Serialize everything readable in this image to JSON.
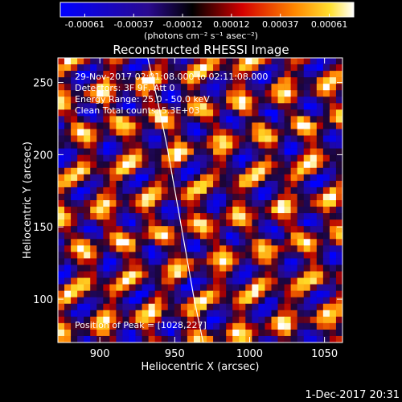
{
  "chart_data": {
    "type": "heatmap",
    "title": "Reconstructed RHESSI Image",
    "xlabel": "Heliocentric X (arcsec)",
    "ylabel": "Heliocentric Y (arcsec)",
    "xlim": [
      872,
      1062
    ],
    "ylim": [
      70,
      267
    ],
    "x_ticks": [
      900,
      950,
      1000,
      1050
    ],
    "y_ticks": [
      100,
      150,
      200,
      250
    ],
    "grid": false,
    "colorbar": {
      "range": [
        -0.00061,
        0.00061
      ],
      "tick_labels": [
        "-0.00061",
        "-0.00037",
        "-0.00012",
        "0.00012",
        "0.00037",
        "0.00061"
      ],
      "units_text": "(photons cm⁻² s⁻¹ asec⁻²)",
      "colors": [
        "#0000ff",
        "#000000",
        "#d70000",
        "#ff8800",
        "#ffffff"
      ]
    },
    "annotations": {
      "time_range": "29-Nov-2017 02:01:08.000 to 02:11:08.000",
      "detectors": "Detectors: 3F 9F, Att 0",
      "energy": "Energy Range: 25.0 - 50.0 keV",
      "method": "Clean    Total counts: 5.3E+03",
      "peak": "Position of Peak = [1028,227]"
    },
    "limb_curve": {
      "x": [
        932,
        938,
        945,
        951,
        957,
        963,
        969
      ],
      "y": [
        267,
        240,
        205,
        170,
        135,
        100,
        70
      ]
    },
    "peak_position": [
      1028,
      227
    ]
  },
  "footer": {
    "datetime": "1-Dec-2017 20:31"
  }
}
